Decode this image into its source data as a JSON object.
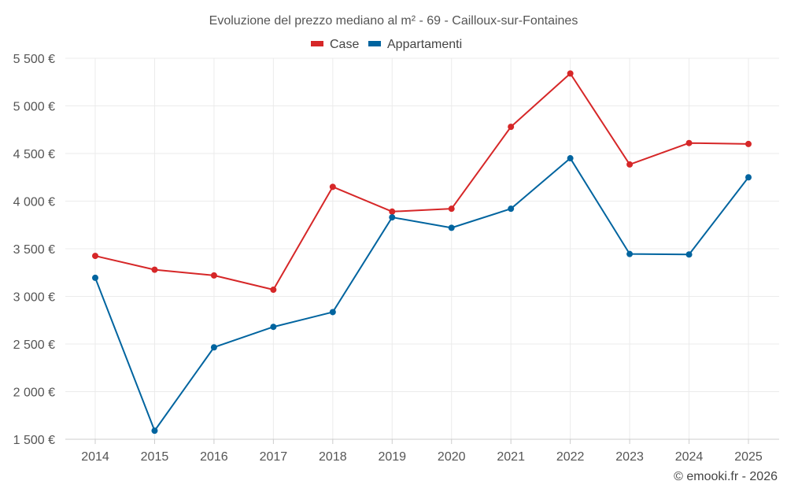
{
  "chart_data": {
    "type": "line",
    "title": "Evoluzione del prezzo mediano al m² - 69 - Cailloux-sur-Fontaines",
    "xlabel": "",
    "ylabel": "",
    "categories": [
      "2014",
      "2015",
      "2016",
      "2017",
      "2018",
      "2019",
      "2020",
      "2021",
      "2022",
      "2023",
      "2024",
      "2025"
    ],
    "series": [
      {
        "name": "Case",
        "color": "#d62728",
        "values": [
          3425,
          3280,
          3220,
          3070,
          4150,
          3890,
          3920,
          4780,
          5340,
          4385,
          4610,
          4600
        ]
      },
      {
        "name": "Appartamenti",
        "color": "#00649f",
        "values": [
          3195,
          1590,
          2465,
          2680,
          2835,
          3830,
          3720,
          3920,
          4450,
          3445,
          3440,
          4250
        ]
      }
    ],
    "ylim": [
      1500,
      5500
    ],
    "yticks": [
      1500,
      2000,
      2500,
      3000,
      3500,
      4000,
      4500,
      5000,
      5500
    ],
    "ytick_labels": [
      "1 500 €",
      "2 000 €",
      "2 500 €",
      "3 000 €",
      "3 500 €",
      "4 000 €",
      "4 500 €",
      "5 000 €",
      "5 500 €"
    ],
    "grid": true,
    "legend_position": "top-center"
  },
  "credit": "© emooki.fr - 2026"
}
